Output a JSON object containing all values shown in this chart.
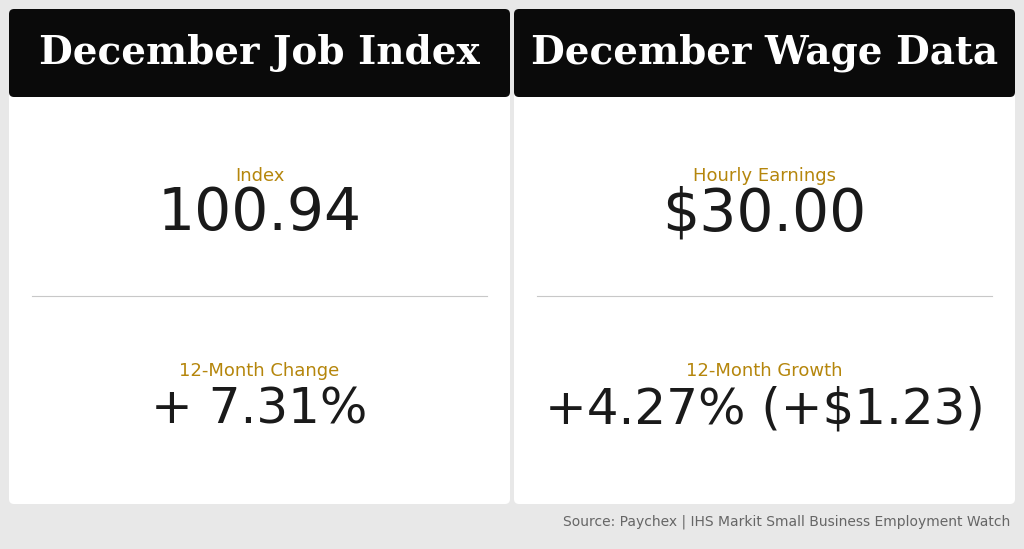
{
  "bg_color": "#e8e8e8",
  "card_bg": "#ffffff",
  "header_bg": "#0a0a0a",
  "header_text_color": "#ffffff",
  "label_color": "#b5860c",
  "value_color": "#1a1a1a",
  "divider_color": "#c8c8c8",
  "source_color": "#666666",
  "left_title": "December Job Index",
  "left_label1": "Index",
  "left_value1": "100.94",
  "left_label2": "12-Month Change",
  "left_value2": "+ 7.31%",
  "right_title": "December Wage Data",
  "right_label1": "Hourly Earnings",
  "right_value1": "$30.00",
  "right_label2": "12-Month Growth",
  "right_value2": "+4.27% (+$1.23)",
  "source_text": "Source: Paychex | IHS Markit Small Business Employment Watch",
  "header_fontsize": 28,
  "label_fontsize": 13,
  "value_fontsize1": 42,
  "value_fontsize2": 36,
  "source_fontsize": 10
}
